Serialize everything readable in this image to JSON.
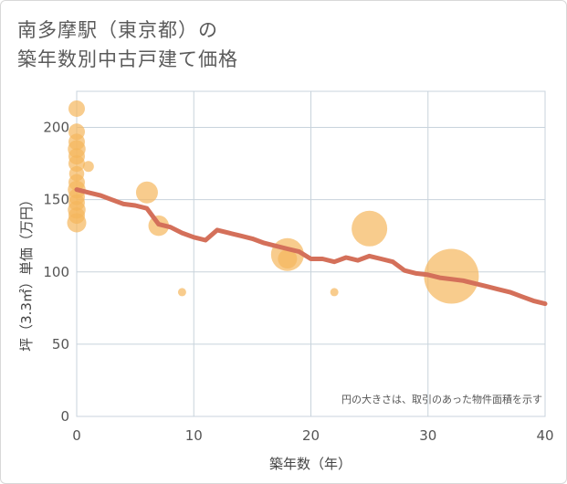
{
  "chart_data": {
    "type": "scatter",
    "title_line1": "南多摩駅（東京都）の",
    "title_line2": "築年数別中古戸建て価格",
    "xlabel": "築年数（年）",
    "ylabel": "坪（3.3㎡）単価（万円）",
    "xlim": [
      0,
      40
    ],
    "ylim": [
      0,
      225
    ],
    "xticks": [
      0,
      10,
      20,
      30,
      40
    ],
    "yticks": [
      0,
      50,
      100,
      150,
      200
    ],
    "grid": true,
    "bubble_color": "#f5b75c",
    "line_color": "#d4705a",
    "note": "円の大きさは、取引のあった物件面積を示す",
    "points": [
      {
        "x": 0,
        "y": 213,
        "size": 1.2
      },
      {
        "x": 0,
        "y": 197,
        "size": 1.2
      },
      {
        "x": 0,
        "y": 190,
        "size": 1.2
      },
      {
        "x": 0,
        "y": 185,
        "size": 1.3
      },
      {
        "x": 0,
        "y": 180,
        "size": 1.2
      },
      {
        "x": 0,
        "y": 175,
        "size": 1.2
      },
      {
        "x": 0,
        "y": 168,
        "size": 1.1
      },
      {
        "x": 0,
        "y": 162,
        "size": 1.2
      },
      {
        "x": 0,
        "y": 157,
        "size": 1.3
      },
      {
        "x": 0,
        "y": 152,
        "size": 1.2
      },
      {
        "x": 0,
        "y": 148,
        "size": 1.2
      },
      {
        "x": 0,
        "y": 143,
        "size": 1.3
      },
      {
        "x": 0,
        "y": 139,
        "size": 1.2
      },
      {
        "x": 0,
        "y": 134,
        "size": 1.4
      },
      {
        "x": 1,
        "y": 173,
        "size": 0.8
      },
      {
        "x": 6,
        "y": 155,
        "size": 1.6
      },
      {
        "x": 7,
        "y": 132,
        "size": 1.5
      },
      {
        "x": 9,
        "y": 86,
        "size": 0.6
      },
      {
        "x": 18,
        "y": 112,
        "size": 2.4
      },
      {
        "x": 18,
        "y": 109,
        "size": 1.4
      },
      {
        "x": 22,
        "y": 86,
        "size": 0.6
      },
      {
        "x": 25,
        "y": 130,
        "size": 2.6
      },
      {
        "x": 32,
        "y": 97,
        "size": 4.0
      }
    ],
    "trend": {
      "x": [
        0,
        1,
        2,
        3,
        4,
        5,
        6,
        7,
        8,
        9,
        10,
        11,
        12,
        13,
        14,
        15,
        16,
        17,
        18,
        19,
        20,
        21,
        22,
        23,
        24,
        25,
        26,
        27,
        28,
        29,
        30,
        31,
        32,
        33,
        34,
        35,
        36,
        37,
        38,
        39,
        40
      ],
      "y": [
        157,
        155,
        153,
        150,
        147,
        146,
        144,
        133,
        131,
        127,
        124,
        122,
        129,
        127,
        125,
        123,
        120,
        118,
        116,
        114,
        109,
        109,
        107,
        110,
        108,
        111,
        109,
        107,
        101,
        99,
        98,
        96,
        95,
        94,
        92,
        90,
        88,
        86,
        83,
        80,
        78
      ]
    }
  }
}
